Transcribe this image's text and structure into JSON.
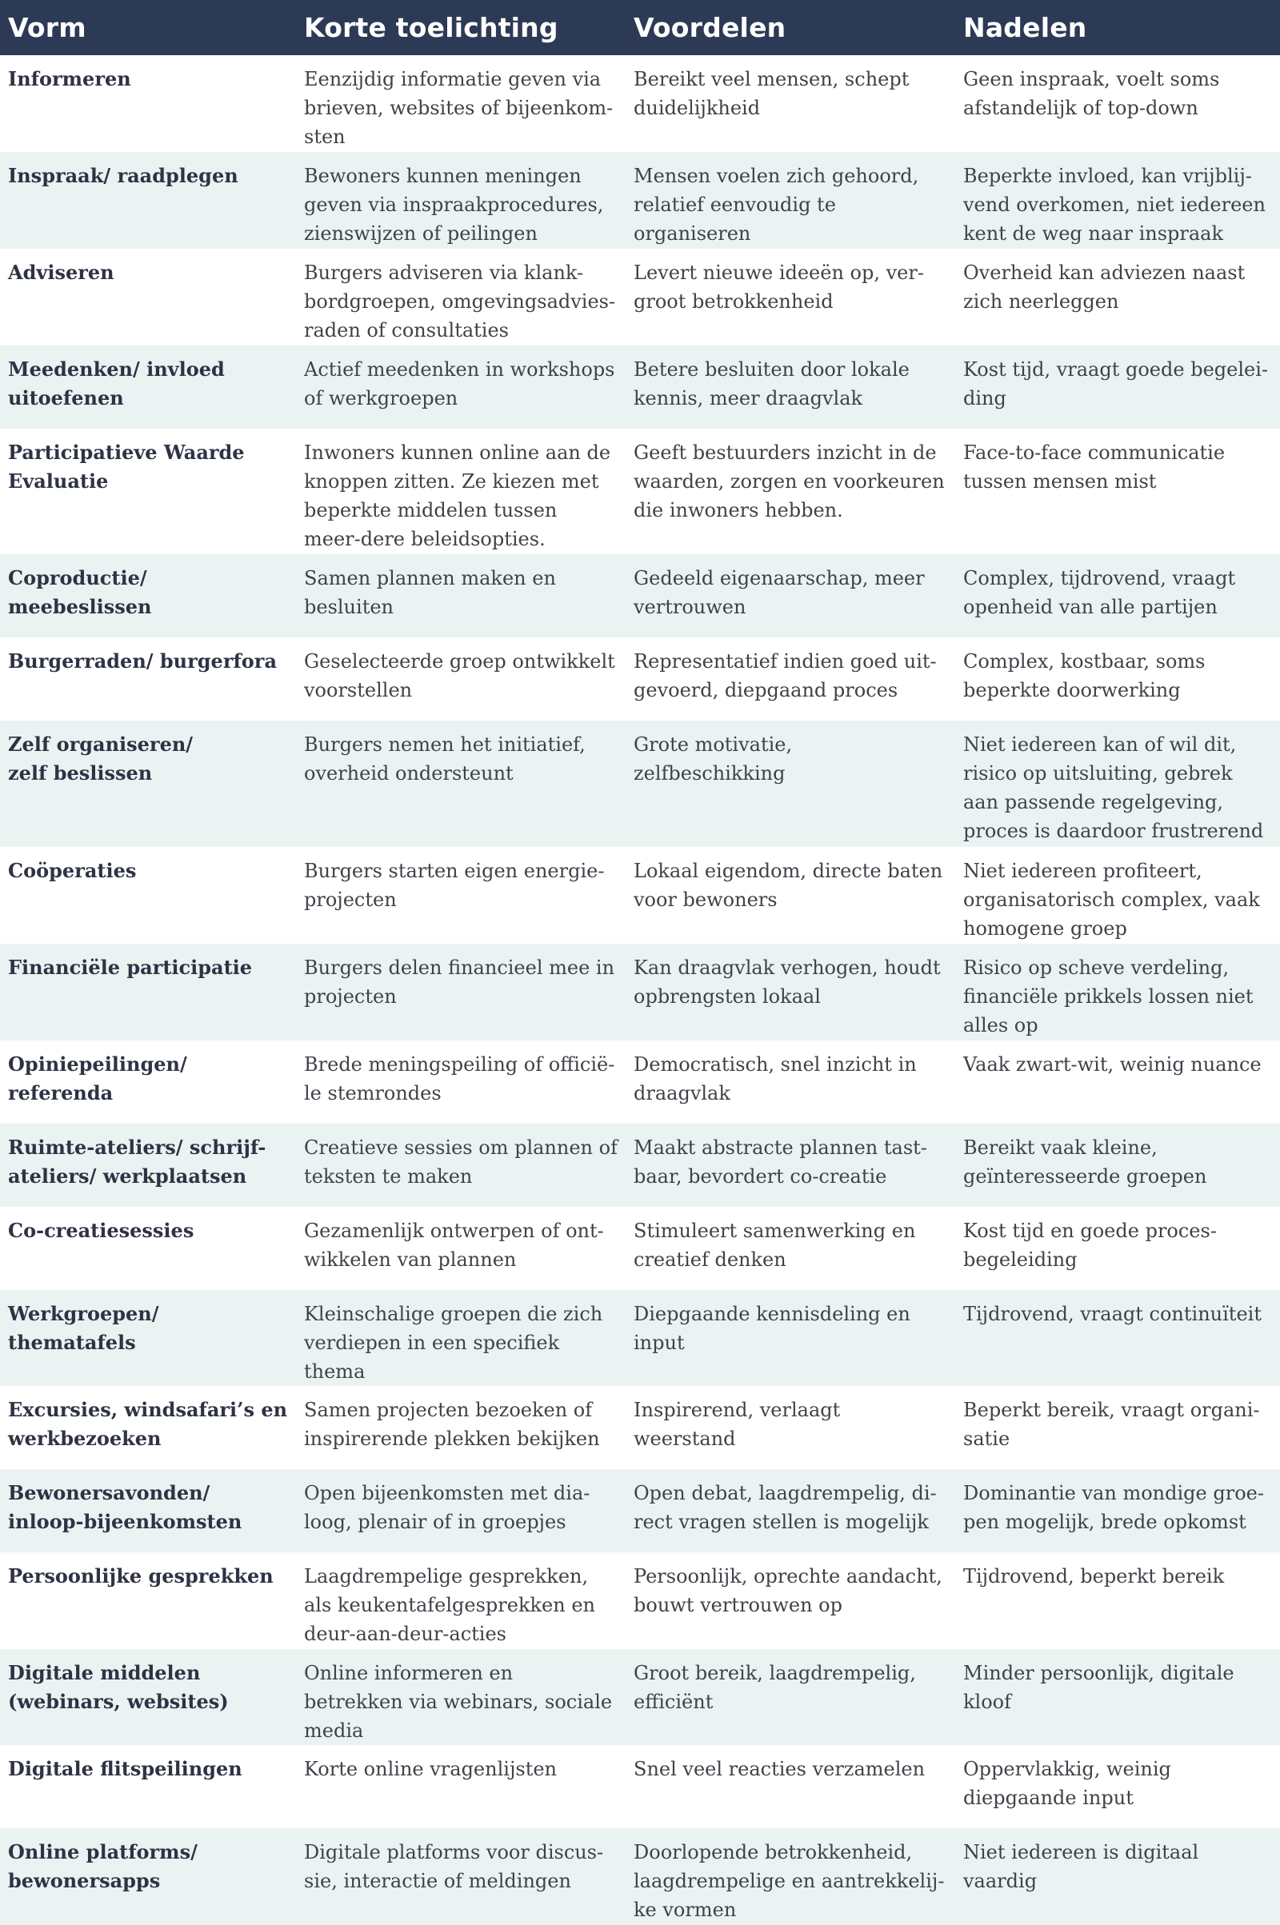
{
  "headers": {
    "vorm": "Vorm",
    "toelichting": "Korte toelichting",
    "voordelen": "Voordelen",
    "nadelen": "Nadelen"
  },
  "rows": [
    {
      "vorm": "Informeren",
      "toelichting": "Eenzijdig informatie geven via brieven, websites of bijeenkom-sten",
      "voordelen": "Bereikt veel mensen, schept duidelijkheid",
      "nadelen": "Geen inspraak, voelt soms afstandelijk of top-down"
    },
    {
      "vorm": "Inspraak/ raadplegen",
      "toelichting": "Bewoners kunnen meningen geven via inspraakprocedures, zienswijzen of peilingen",
      "voordelen": "Mensen voelen zich gehoord, relatief eenvoudig te organiseren",
      "nadelen": "Beperkte invloed, kan vrijblij-vend overkomen, niet iedereen kent de weg naar inspraak"
    },
    {
      "vorm": "Adviseren",
      "toelichting": "Burgers adviseren via klank-bordgroepen, omgevingsadvies-raden of consultaties",
      "voordelen": "Levert nieuwe ideeën op, ver-groot betrokkenheid",
      "nadelen": "Overheid kan adviezen naast zich neerleggen"
    },
    {
      "vorm": "Meedenken/ invloed uitoefenen",
      "toelichting": "Actief meedenken in workshops of werkgroepen",
      "voordelen": "Betere besluiten door lokale kennis, meer draagvlak",
      "nadelen": "Kost tijd, vraagt goede begelei-ding"
    },
    {
      "vorm": "Participatieve Waarde Evaluatie",
      "toelichting": "Inwoners kunnen online aan de knoppen zitten. Ze kiezen met beperkte middelen tussen meer-dere beleidsopties.",
      "voordelen": "Geeft bestuurders inzicht in de waarden, zorgen en voorkeuren die inwoners hebben.",
      "nadelen": "Face-to-face communicatie tussen mensen mist"
    },
    {
      "vorm": "Coproductie/ meebeslissen",
      "toelichting": "Samen plannen maken en besluiten",
      "voordelen": "Gedeeld eigenaarschap, meer vertrouwen",
      "nadelen": "Complex, tijdrovend, vraagt openheid van alle partijen"
    },
    {
      "vorm": "Burgerraden/ burgerfora",
      "toelichting": "Geselecteerde groep ontwikkelt voorstellen",
      "voordelen": "Representatief indien goed uit-gevoerd, diepgaand proces",
      "nadelen": "Complex, kostbaar, soms beperkte doorwerking"
    },
    {
      "vorm": "Zelf organiseren/",
      "vorm2": "zelf beslissen",
      "toelichting": "Burgers nemen het initiatief, overheid ondersteunt",
      "voordelen": "Grote motivatie, zelfbeschikking",
      "nadelen": "Niet iedereen kan of wil dit, risico op uitsluiting, gebrek aan passende regelgeving, proces is daardoor frustrerend"
    },
    {
      "vorm": "Coöperaties",
      "toelichting": "Burgers starten eigen energie-projecten",
      "voordelen": "Lokaal eigendom, directe baten voor bewoners",
      "nadelen": "Niet iedereen profiteert, organisatorisch complex, vaak homogene groep"
    },
    {
      "vorm": "Financiële participatie",
      "toelichting": "Burgers delen financieel mee in projecten",
      "voordelen": "Kan draagvlak verhogen, houdt opbrengsten lokaal",
      "nadelen": "Risico op scheve verdeling, financiële prikkels lossen niet alles op"
    },
    {
      "vorm": "Opiniepeilingen/ referenda",
      "toelichting": "Brede meningspeiling of officië-le stemrondes",
      "voordelen": "Democratisch, snel inzicht in draagvlak",
      "nadelen": "Vaak zwart-wit, weinig nuance"
    },
    {
      "vorm": "Ruimte-ateliers/ schrijf-ateliers/ werkplaatsen",
      "toelichting": "Creatieve sessies om plannen of teksten te maken",
      "voordelen": "Maakt abstracte plannen tast-baar, bevordert co-creatie",
      "nadelen": "Bereikt vaak kleine, geïnteresseerde groepen"
    },
    {
      "vorm": "Co-creatiesessies",
      "toelichting": "Gezamenlijk ontwerpen of ont-wikkelen van plannen",
      "voordelen": "Stimuleert samenwerking en creatief denken",
      "nadelen": "Kost tijd en goede proces-begeleiding"
    },
    {
      "vorm": "Werkgroepen/ thematafels",
      "toelichting": "Kleinschalige groepen die zich verdiepen in een specifiek thema",
      "voordelen": "Diepgaande kennisdeling en input",
      "nadelen": "Tijdrovend, vraagt continuïteit"
    },
    {
      "vorm": "Excursies, windsafari’s en werkbezoeken",
      "toelichting": "Samen projecten bezoeken of inspirerende plekken bekijken",
      "voordelen": "Inspirerend, verlaagt weerstand",
      "nadelen": "Beperkt bereik, vraagt organi-satie"
    },
    {
      "vorm": "Bewonersavonden/ inloop-bijeenkomsten",
      "toelichting": "Open bijeenkomsten met dia-loog, plenair of in groepjes",
      "voordelen": "Open debat, laagdrempelig, di-rect vragen stellen is mogelijk",
      "nadelen": "Dominantie van mondige groe-pen mogelijk, brede opkomst"
    },
    {
      "vorm": "Persoonlijke gesprekken",
      "toelichting": "Laagdrempelige gesprekken, als keukentafelgesprekken en deur-aan-deur-acties",
      "voordelen": "Persoonlijk, oprechte aandacht, bouwt vertrouwen op",
      "nadelen": "Tijdrovend, beperkt bereik"
    },
    {
      "vorm": "Digitale middelen (webinars, websites)",
      "toelichting": "Online informeren en betrekken via webinars, sociale media",
      "voordelen": "Groot bereik, laagdrempelig, efficiënt",
      "nadelen": "Minder persoonlijk, digitale kloof"
    },
    {
      "vorm": "Digitale flitspeilingen",
      "toelichting": "Korte online vragenlijsten",
      "voordelen": "Snel veel reacties verzamelen",
      "nadelen": "Oppervlakkig, weinig diepgaande input"
    },
    {
      "vorm": "Online platforms/ bewonersapps",
      "toelichting": "Digitale platforms voor discus-sie, interactie of meldingen",
      "voordelen": "Doorlopende betrokkenheid, laagdrempelige en aantrekkelij-ke vormen",
      "nadelen": "Niet iedereen is digitaal vaardig"
    }
  ]
}
